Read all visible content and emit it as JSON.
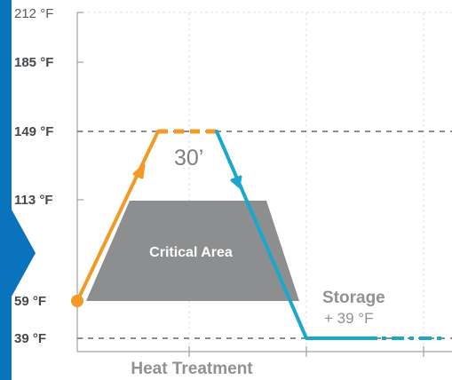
{
  "theme": {
    "heating": "#f29a25",
    "cooling": "#19a8cc",
    "critical": "#8c8e90",
    "sidebar": "#0a73be",
    "reference_line": "#8a8e92",
    "grid": "#dcdfe2"
  },
  "chart_data": {
    "type": "line",
    "title": "",
    "xlabel": "Heat Treatment",
    "ylabel": "",
    "y_ticks": [
      "212 °F",
      "185 °F",
      "149 °F",
      "113 °F",
      "59 °F",
      "39 °F"
    ],
    "y_values": [
      212,
      185,
      149,
      113,
      59,
      39
    ],
    "grid": true,
    "reference_lines": [
      149,
      39
    ],
    "series": [
      {
        "color_key": "heating",
        "segment": "rise",
        "from": 59,
        "to": 149
      },
      {
        "color_key": "heating",
        "segment": "hold",
        "value": 149,
        "style": "dashed"
      },
      {
        "color_key": "cooling",
        "segment": "fall",
        "from": 149,
        "to": 39
      },
      {
        "color_key": "cooling",
        "segment": "storage",
        "value": 39,
        "style": "dash-dot"
      }
    ],
    "annotations": {
      "hold_time": "30’",
      "critical_area": "Critical Area",
      "storage_title": "Storage",
      "storage_temp": "+ 39 °F"
    },
    "critical_area_range": [
      59,
      113
    ]
  }
}
